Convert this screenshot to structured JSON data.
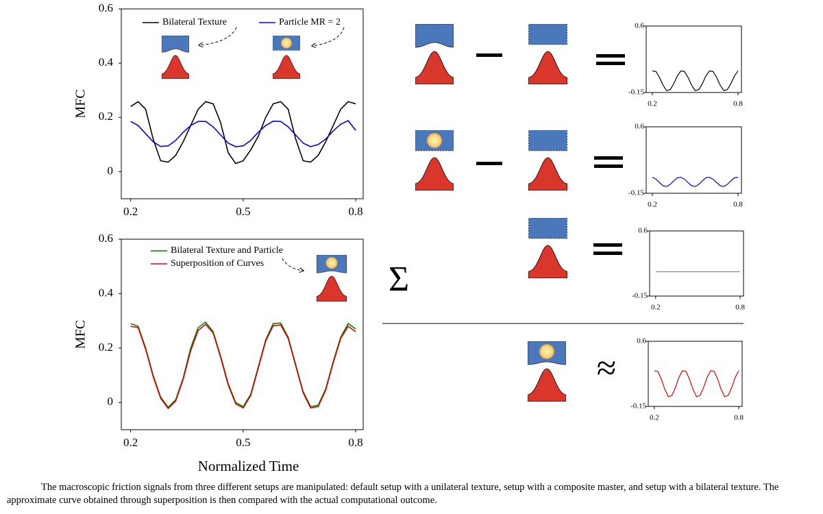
{
  "chart_data": [
    {
      "type": "line",
      "ylabel": "MFC",
      "xlim": [
        0.175,
        0.82
      ],
      "ylim": [
        -0.1,
        0.6
      ],
      "xticks": [
        0.2,
        0.5,
        0.8
      ],
      "yticks": [
        0,
        0.2,
        0.4,
        0.6
      ],
      "x": [
        0.2,
        0.22,
        0.24,
        0.26,
        0.28,
        0.3,
        0.32,
        0.34,
        0.36,
        0.38,
        0.4,
        0.42,
        0.44,
        0.46,
        0.48,
        0.5,
        0.52,
        0.54,
        0.56,
        0.58,
        0.6,
        0.62,
        0.64,
        0.66,
        0.68,
        0.7,
        0.72,
        0.74,
        0.76,
        0.78,
        0.8
      ],
      "series": [
        {
          "name": "Bilateral Texture",
          "color": "#000000",
          "values": [
            0.24,
            0.258,
            0.23,
            0.12,
            0.04,
            0.035,
            0.06,
            0.11,
            0.17,
            0.23,
            0.258,
            0.25,
            0.18,
            0.07,
            0.03,
            0.04,
            0.08,
            0.13,
            0.2,
            0.25,
            0.258,
            0.23,
            0.12,
            0.04,
            0.035,
            0.06,
            0.11,
            0.17,
            0.23,
            0.258,
            0.25
          ]
        },
        {
          "name": "Particle MR = 2",
          "color": "#0000ee",
          "values": [
            0.185,
            0.17,
            0.14,
            0.11,
            0.093,
            0.095,
            0.115,
            0.145,
            0.17,
            0.185,
            0.185,
            0.165,
            0.135,
            0.105,
            0.092,
            0.095,
            0.115,
            0.145,
            0.17,
            0.186,
            0.185,
            0.165,
            0.135,
            0.105,
            0.092,
            0.1,
            0.12,
            0.15,
            0.175,
            0.188,
            0.152
          ]
        }
      ]
    },
    {
      "type": "line",
      "ylabel": "MFC",
      "xlabel": "Normalized Time",
      "xlim": [
        0.175,
        0.82
      ],
      "ylim": [
        -0.1,
        0.6
      ],
      "xticks": [
        0.2,
        0.5,
        0.8
      ],
      "yticks": [
        0,
        0.2,
        0.4,
        0.6
      ],
      "x": [
        0.2,
        0.22,
        0.24,
        0.26,
        0.28,
        0.3,
        0.32,
        0.34,
        0.36,
        0.38,
        0.4,
        0.42,
        0.44,
        0.46,
        0.48,
        0.5,
        0.52,
        0.54,
        0.56,
        0.58,
        0.6,
        0.62,
        0.64,
        0.66,
        0.68,
        0.7,
        0.72,
        0.74,
        0.76,
        0.78,
        0.8
      ],
      "series": [
        {
          "name": "Bilateral Texture and Particle",
          "color": "#008000",
          "values": [
            0.29,
            0.28,
            0.2,
            0.1,
            0.02,
            -0.018,
            0.01,
            0.09,
            0.2,
            0.275,
            0.295,
            0.26,
            0.17,
            0.07,
            0,
            -0.015,
            0.03,
            0.13,
            0.23,
            0.29,
            0.292,
            0.24,
            0.14,
            0.04,
            -0.015,
            -0.01,
            0.05,
            0.15,
            0.24,
            0.29,
            0.27
          ]
        },
        {
          "name": "Superposition of Curves",
          "color": "#e00000",
          "values": [
            0.28,
            0.275,
            0.195,
            0.095,
            0.015,
            -0.022,
            0.005,
            0.085,
            0.19,
            0.265,
            0.287,
            0.255,
            0.165,
            0.065,
            -0.005,
            -0.02,
            0.025,
            0.125,
            0.225,
            0.282,
            0.285,
            0.235,
            0.135,
            0.035,
            -0.02,
            -0.015,
            0.045,
            0.145,
            0.235,
            0.28,
            0.26
          ]
        }
      ]
    },
    {
      "type": "line",
      "xlim": [
        0.157,
        0.824
      ],
      "ylim": [
        -0.15,
        0.6
      ],
      "xticks": [
        0.2,
        0.8
      ],
      "yticks": [
        -0.15,
        0.6
      ],
      "x": [
        0.2,
        0.225,
        0.25,
        0.275,
        0.3,
        0.325,
        0.35,
        0.375,
        0.4,
        0.425,
        0.45,
        0.475,
        0.5,
        0.525,
        0.55,
        0.575,
        0.6,
        0.625,
        0.65,
        0.675,
        0.7,
        0.725,
        0.75,
        0.775,
        0.8
      ],
      "series": [
        {
          "color": "#000000",
          "values": [
            0.094,
            0.087,
            0.021,
            -0.067,
            -0.129,
            -0.117,
            -0.051,
            0.037,
            0.094,
            0.087,
            0.021,
            -0.067,
            -0.129,
            -0.117,
            -0.051,
            0.037,
            0.094,
            0.087,
            0.021,
            -0.067,
            -0.129,
            -0.117,
            -0.051,
            0.037,
            0.094
          ]
        }
      ]
    },
    {
      "type": "line",
      "xlim": [
        0.157,
        0.824
      ],
      "ylim": [
        -0.15,
        0.6
      ],
      "xticks": [
        0.2,
        0.8
      ],
      "yticks": [
        -0.15,
        0.6
      ],
      "x": [
        0.2,
        0.225,
        0.25,
        0.275,
        0.3,
        0.325,
        0.35,
        0.375,
        0.4,
        0.425,
        0.45,
        0.475,
        0.5,
        0.525,
        0.55,
        0.575,
        0.6,
        0.625,
        0.65,
        0.675,
        0.7,
        0.725,
        0.75,
        0.775,
        0.8
      ],
      "series": [
        {
          "color": "#0000ee",
          "values": [
            0.03,
            0.01,
            -0.03,
            -0.065,
            -0.074,
            -0.05,
            -0.01,
            0.025,
            0.03,
            0.01,
            -0.03,
            -0.065,
            -0.074,
            -0.05,
            -0.01,
            0.025,
            0.03,
            0.01,
            -0.03,
            -0.065,
            -0.074,
            -0.05,
            -0.01,
            0.025,
            0.03
          ]
        }
      ]
    },
    {
      "type": "line",
      "xlim": [
        0.157,
        0.824
      ],
      "ylim": [
        -0.15,
        0.6
      ],
      "xticks": [
        0.2,
        0.8
      ],
      "yticks": [
        -0.15,
        0.6
      ],
      "x": [
        0.2,
        0.8
      ],
      "series": [
        {
          "color": "#888888",
          "values": [
            0.13,
            0.13
          ]
        }
      ]
    },
    {
      "type": "line",
      "xlim": [
        0.157,
        0.824
      ],
      "ylim": [
        -0.15,
        0.6
      ],
      "xticks": [
        0.2,
        0.8
      ],
      "yticks": [
        -0.15,
        0.6
      ],
      "x": [
        0.2,
        0.225,
        0.25,
        0.275,
        0.3,
        0.325,
        0.35,
        0.375,
        0.4,
        0.425,
        0.45,
        0.475,
        0.5,
        0.525,
        0.55,
        0.575,
        0.6,
        0.625,
        0.65,
        0.675,
        0.7,
        0.725,
        0.75,
        0.775,
        0.8
      ],
      "series": [
        {
          "color": "#e00000",
          "values": [
            0.262,
            0.253,
            0.163,
            0.045,
            -0.038,
            -0.023,
            0.067,
            0.185,
            0.262,
            0.253,
            0.163,
            0.045,
            -0.038,
            -0.023,
            0.067,
            0.185,
            0.262,
            0.253,
            0.163,
            0.045,
            -0.038,
            -0.023,
            0.067,
            0.185,
            0.262
          ]
        }
      ]
    }
  ],
  "equation": {
    "sum": "Σ",
    "approx": "≈"
  },
  "caption": "The macroscopic friction signals from three different setups are manipulated: default setup with a unilateral texture, setup with a composite master, and setup with a bilateral texture. The approximate curve obtained through superposition is then compared with the actual computational outcome."
}
